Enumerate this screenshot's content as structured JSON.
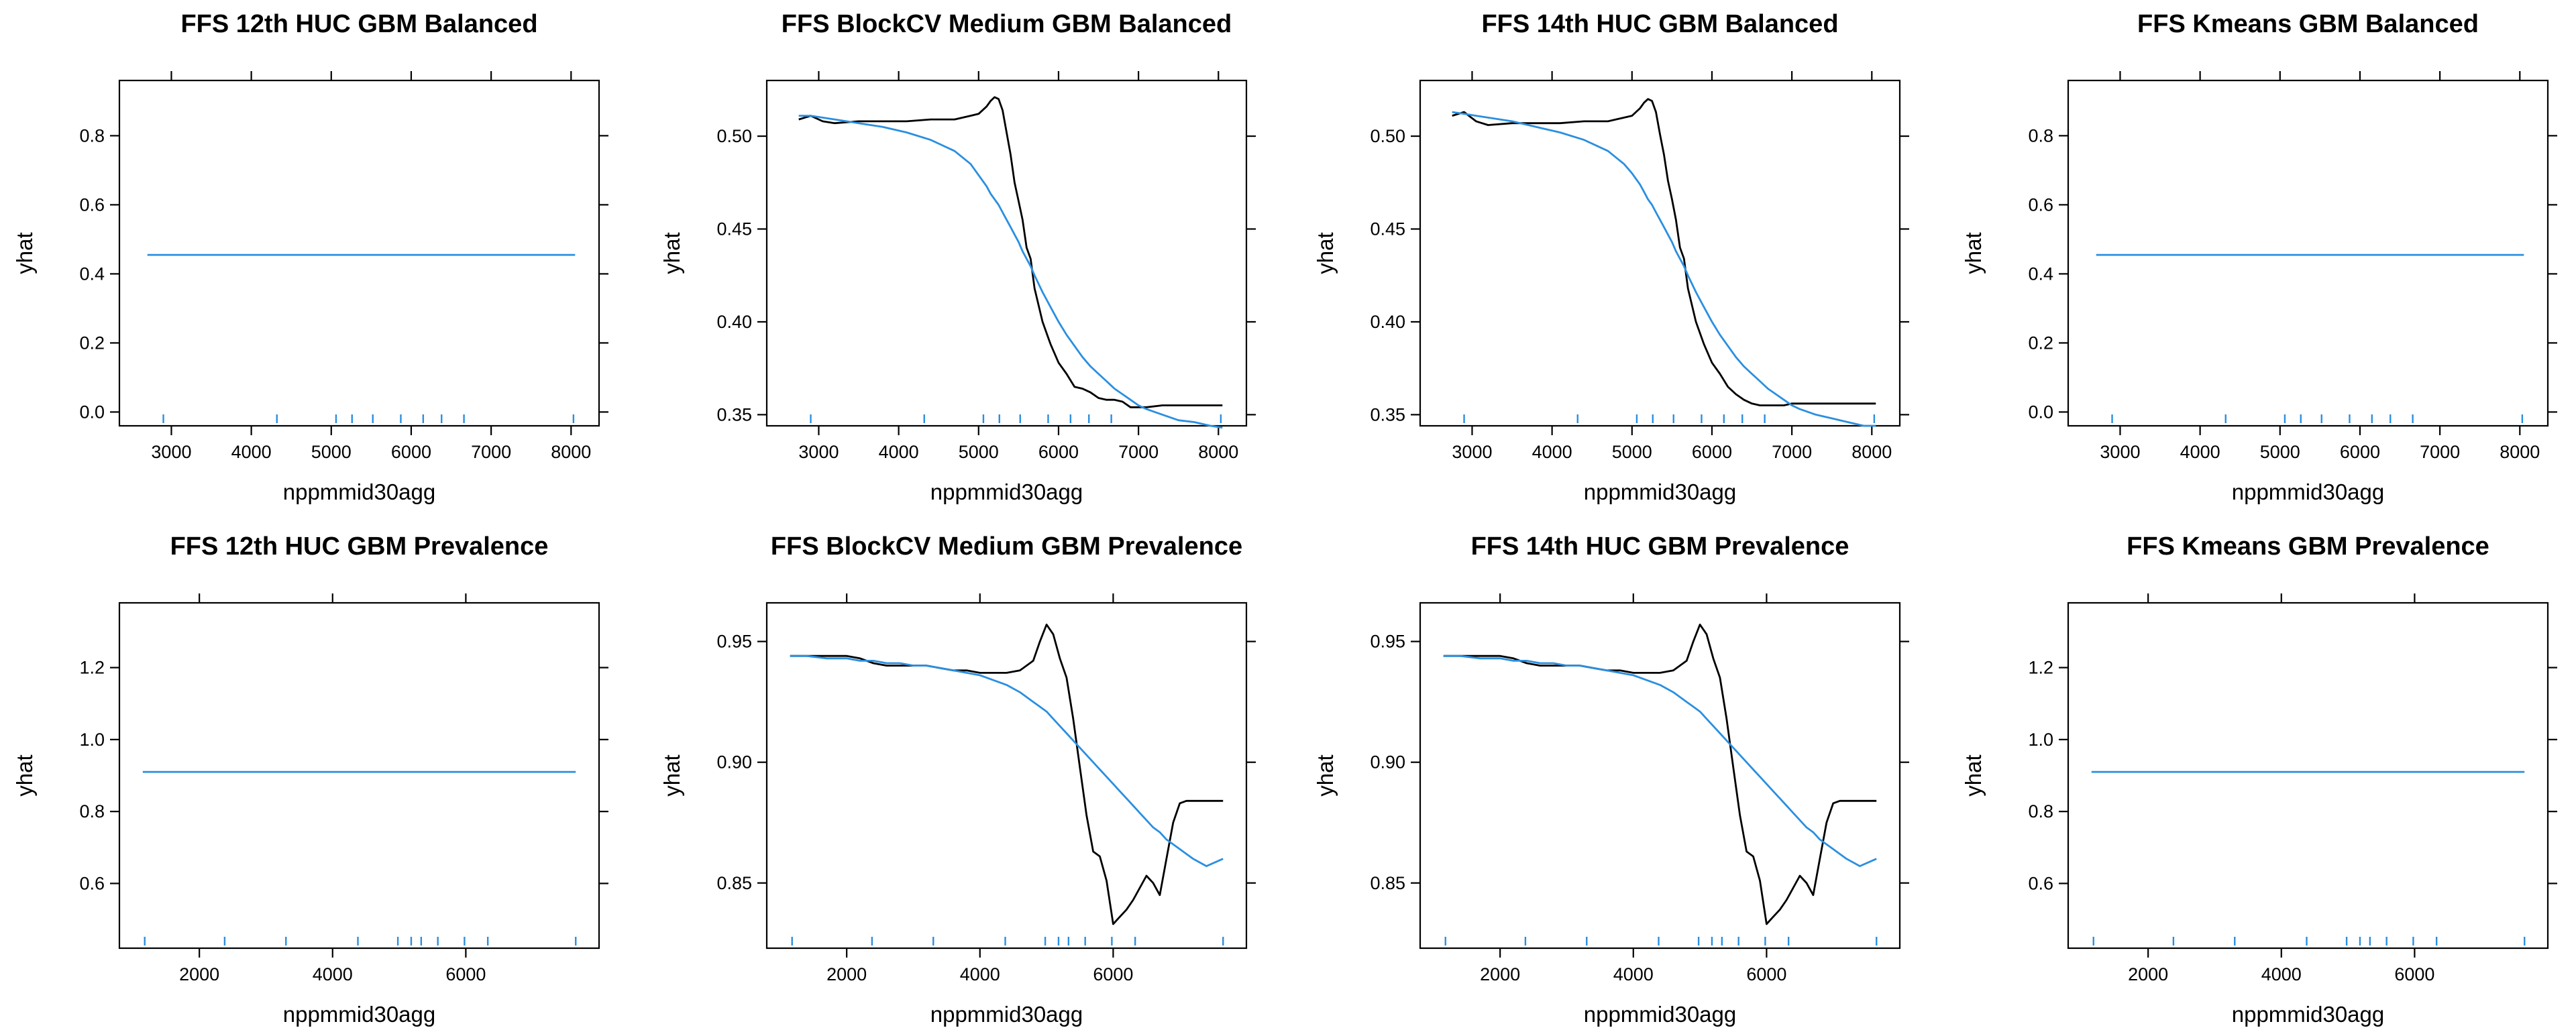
{
  "colors": {
    "yhat_line": "#000000",
    "smooth_line": "#2a8fe0",
    "rug": "#2a8fe0"
  },
  "chart_data": [
    {
      "type": "line",
      "title": "FFS 12th HUC GBM Balanced",
      "xlabel": "nppmmid30agg",
      "ylabel": "yhat",
      "xlim": [
        2350,
        8350
      ],
      "ylim": [
        -0.04,
        0.96
      ],
      "xticks": [
        3000,
        4000,
        5000,
        6000,
        7000,
        8000
      ],
      "yticks": [
        0.0,
        0.2,
        0.4,
        0.6,
        0.8
      ],
      "x": [
        2700,
        8050
      ],
      "series": [
        {
          "values": [
            0.455,
            0.455
          ],
          "color": "#2a8fe0"
        }
      ],
      "rug": [
        2900,
        4320,
        5060,
        5260,
        5520,
        5870,
        6150,
        6380,
        6660,
        8030
      ]
    },
    {
      "type": "line",
      "title": "FFS BlockCV Medium GBM Balanced",
      "xlabel": "nppmmid30agg",
      "ylabel": "yhat",
      "xlim": [
        2350,
        8350
      ],
      "ylim": [
        0.344,
        0.53
      ],
      "xticks": [
        3000,
        4000,
        5000,
        6000,
        7000,
        8000
      ],
      "yticks": [
        0.35,
        0.4,
        0.45,
        0.5
      ],
      "x": [
        2750,
        2900,
        3050,
        3200,
        3500,
        3800,
        4100,
        4400,
        4700,
        4900,
        5000,
        5100,
        5150,
        5200,
        5250,
        5300,
        5350,
        5400,
        5450,
        5500,
        5550,
        5600,
        5650,
        5700,
        5800,
        5900,
        6000,
        6100,
        6200,
        6300,
        6400,
        6500,
        6600,
        6700,
        6800,
        6900,
        7000,
        7100,
        7300,
        7500,
        7700,
        7900,
        8050
      ],
      "series": [
        {
          "values": [
            0.509,
            0.511,
            0.508,
            0.507,
            0.508,
            0.508,
            0.508,
            0.509,
            0.509,
            0.511,
            0.512,
            0.516,
            0.519,
            0.521,
            0.52,
            0.514,
            0.502,
            0.49,
            0.475,
            0.465,
            0.455,
            0.44,
            0.434,
            0.418,
            0.4,
            0.388,
            0.378,
            0.372,
            0.365,
            0.364,
            0.362,
            0.359,
            0.358,
            0.358,
            0.357,
            0.354,
            0.354,
            0.354,
            0.355,
            0.355,
            0.355,
            0.355,
            0.355
          ],
          "color": "#000000"
        },
        {
          "values": [
            0.511,
            0.511,
            0.51,
            0.509,
            0.507,
            0.505,
            0.502,
            0.498,
            0.492,
            0.485,
            0.479,
            0.473,
            0.469,
            0.466,
            0.463,
            0.459,
            0.455,
            0.451,
            0.447,
            0.443,
            0.438,
            0.434,
            0.43,
            0.425,
            0.416,
            0.408,
            0.4,
            0.393,
            0.387,
            0.381,
            0.376,
            0.372,
            0.368,
            0.364,
            0.361,
            0.358,
            0.355,
            0.353,
            0.35,
            0.347,
            0.346,
            0.344,
            0.343
          ],
          "color": "#2a8fe0"
        }
      ],
      "rug": [
        2900,
        4320,
        5060,
        5260,
        5520,
        5870,
        6150,
        6380,
        6660,
        8030
      ]
    },
    {
      "type": "line",
      "title": "FFS 14th HUC GBM Balanced",
      "xlabel": "nppmmid30agg",
      "ylabel": "yhat",
      "xlim": [
        2350,
        8350
      ],
      "ylim": [
        0.344,
        0.53
      ],
      "xticks": [
        3000,
        4000,
        5000,
        6000,
        7000,
        8000
      ],
      "yticks": [
        0.35,
        0.4,
        0.45,
        0.5
      ],
      "x": [
        2750,
        2900,
        3050,
        3200,
        3500,
        3800,
        4100,
        4400,
        4700,
        4900,
        5000,
        5100,
        5150,
        5200,
        5250,
        5300,
        5350,
        5400,
        5450,
        5500,
        5550,
        5600,
        5650,
        5700,
        5800,
        5900,
        6000,
        6100,
        6200,
        6300,
        6400,
        6500,
        6600,
        6700,
        6800,
        6900,
        7000,
        7100,
        7300,
        7500,
        7700,
        7900,
        8050
      ],
      "series": [
        {
          "values": [
            0.511,
            0.513,
            0.508,
            0.506,
            0.507,
            0.507,
            0.507,
            0.508,
            0.508,
            0.51,
            0.511,
            0.515,
            0.518,
            0.52,
            0.519,
            0.513,
            0.501,
            0.49,
            0.476,
            0.466,
            0.455,
            0.44,
            0.434,
            0.418,
            0.4,
            0.388,
            0.378,
            0.372,
            0.365,
            0.361,
            0.358,
            0.356,
            0.355,
            0.355,
            0.355,
            0.355,
            0.356,
            0.356,
            0.356,
            0.356,
            0.356,
            0.356,
            0.356
          ],
          "color": "#000000"
        },
        {
          "values": [
            0.513,
            0.512,
            0.511,
            0.51,
            0.508,
            0.505,
            0.502,
            0.498,
            0.492,
            0.485,
            0.48,
            0.474,
            0.47,
            0.466,
            0.463,
            0.459,
            0.455,
            0.451,
            0.447,
            0.443,
            0.438,
            0.434,
            0.43,
            0.425,
            0.416,
            0.408,
            0.4,
            0.393,
            0.387,
            0.381,
            0.376,
            0.372,
            0.368,
            0.364,
            0.361,
            0.358,
            0.355,
            0.353,
            0.35,
            0.348,
            0.346,
            0.344,
            0.344
          ],
          "color": "#2a8fe0"
        }
      ],
      "rug": [
        2900,
        4320,
        5060,
        5260,
        5520,
        5870,
        6150,
        6380,
        6660,
        8030
      ]
    },
    {
      "type": "line",
      "title": "FFS Kmeans GBM Balanced",
      "xlabel": "nppmmid30agg",
      "ylabel": "yhat",
      "xlim": [
        2350,
        8350
      ],
      "ylim": [
        -0.04,
        0.96
      ],
      "xticks": [
        3000,
        4000,
        5000,
        6000,
        7000,
        8000
      ],
      "yticks": [
        0.0,
        0.2,
        0.4,
        0.6,
        0.8
      ],
      "x": [
        2700,
        8050
      ],
      "series": [
        {
          "values": [
            0.455,
            0.455
          ],
          "color": "#2a8fe0"
        }
      ],
      "rug": [
        2900,
        4320,
        5060,
        5260,
        5520,
        5870,
        6150,
        6380,
        6660,
        8030
      ]
    },
    {
      "type": "line",
      "title": "FFS 12th HUC GBM Prevalence",
      "xlabel": "nppmmid30agg",
      "ylabel": "yhat",
      "xlim": [
        800,
        8000
      ],
      "ylim": [
        0.42,
        1.38
      ],
      "xticks": [
        2000,
        4000,
        6000
      ],
      "yticks": [
        0.6,
        0.8,
        1.0,
        1.2
      ],
      "x": [
        1150,
        7650
      ],
      "series": [
        {
          "values": [
            0.91,
            0.91
          ],
          "color": "#2a8fe0"
        }
      ],
      "rug": [
        1180,
        2380,
        3300,
        4380,
        4980,
        5180,
        5330,
        5580,
        5980,
        6330,
        7650
      ]
    },
    {
      "type": "line",
      "title": "FFS BlockCV Medium GBM Prevalence",
      "xlabel": "nppmmid30agg",
      "ylabel": "yhat",
      "xlim": [
        800,
        8000
      ],
      "ylim": [
        0.823,
        0.966
      ],
      "xticks": [
        2000,
        4000,
        6000
      ],
      "yticks": [
        0.85,
        0.9,
        0.95
      ],
      "x": [
        1150,
        1400,
        1700,
        2000,
        2200,
        2400,
        2600,
        2800,
        3000,
        3200,
        3400,
        3600,
        3800,
        4000,
        4200,
        4400,
        4600,
        4800,
        4900,
        5000,
        5100,
        5200,
        5300,
        5400,
        5500,
        5600,
        5700,
        5800,
        5900,
        6000,
        6100,
        6200,
        6300,
        6400,
        6500,
        6600,
        6700,
        6800,
        6900,
        7000,
        7100,
        7200,
        7400,
        7650
      ],
      "series": [
        {
          "values": [
            0.944,
            0.944,
            0.944,
            0.944,
            0.943,
            0.941,
            0.94,
            0.94,
            0.94,
            0.94,
            0.939,
            0.938,
            0.938,
            0.937,
            0.937,
            0.937,
            0.938,
            0.942,
            0.95,
            0.957,
            0.953,
            0.943,
            0.935,
            0.918,
            0.898,
            0.878,
            0.863,
            0.861,
            0.851,
            0.833,
            0.836,
            0.839,
            0.843,
            0.848,
            0.853,
            0.85,
            0.845,
            0.86,
            0.875,
            0.883,
            0.884,
            0.884,
            0.884,
            0.884
          ],
          "color": "#000000"
        },
        {
          "values": [
            0.944,
            0.944,
            0.943,
            0.943,
            0.942,
            0.942,
            0.941,
            0.941,
            0.94,
            0.94,
            0.939,
            0.938,
            0.937,
            0.936,
            0.934,
            0.932,
            0.929,
            0.925,
            0.923,
            0.921,
            0.918,
            0.915,
            0.912,
            0.909,
            0.906,
            0.903,
            0.9,
            0.897,
            0.894,
            0.891,
            0.888,
            0.885,
            0.882,
            0.879,
            0.876,
            0.873,
            0.871,
            0.868,
            0.866,
            0.864,
            0.862,
            0.86,
            0.857,
            0.86
          ],
          "color": "#2a8fe0"
        }
      ],
      "rug": [
        1180,
        2380,
        3300,
        4380,
        4980,
        5180,
        5330,
        5580,
        5980,
        6330,
        7650
      ]
    },
    {
      "type": "line",
      "title": "FFS 14th HUC GBM Prevalence",
      "xlabel": "nppmmid30agg",
      "ylabel": "yhat",
      "xlim": [
        800,
        8000
      ],
      "ylim": [
        0.823,
        0.966
      ],
      "xticks": [
        2000,
        4000,
        6000
      ],
      "yticks": [
        0.85,
        0.9,
        0.95
      ],
      "x": [
        1150,
        1400,
        1700,
        2000,
        2200,
        2400,
        2600,
        2800,
        3000,
        3200,
        3400,
        3600,
        3800,
        4000,
        4200,
        4400,
        4600,
        4800,
        4900,
        5000,
        5100,
        5200,
        5300,
        5400,
        5500,
        5600,
        5700,
        5800,
        5900,
        6000,
        6100,
        6200,
        6300,
        6400,
        6500,
        6600,
        6700,
        6800,
        6900,
        7000,
        7100,
        7200,
        7400,
        7650
      ],
      "series": [
        {
          "values": [
            0.944,
            0.944,
            0.944,
            0.944,
            0.943,
            0.941,
            0.94,
            0.94,
            0.94,
            0.94,
            0.939,
            0.938,
            0.938,
            0.937,
            0.937,
            0.937,
            0.938,
            0.942,
            0.95,
            0.957,
            0.953,
            0.943,
            0.935,
            0.918,
            0.898,
            0.878,
            0.863,
            0.861,
            0.851,
            0.833,
            0.836,
            0.839,
            0.843,
            0.848,
            0.853,
            0.85,
            0.845,
            0.86,
            0.875,
            0.883,
            0.884,
            0.884,
            0.884,
            0.884
          ],
          "color": "#000000"
        },
        {
          "values": [
            0.944,
            0.944,
            0.943,
            0.943,
            0.942,
            0.942,
            0.941,
            0.941,
            0.94,
            0.94,
            0.939,
            0.938,
            0.937,
            0.936,
            0.934,
            0.932,
            0.929,
            0.925,
            0.923,
            0.921,
            0.918,
            0.915,
            0.912,
            0.909,
            0.906,
            0.903,
            0.9,
            0.897,
            0.894,
            0.891,
            0.888,
            0.885,
            0.882,
            0.879,
            0.876,
            0.873,
            0.871,
            0.868,
            0.866,
            0.864,
            0.862,
            0.86,
            0.857,
            0.86
          ],
          "color": "#2a8fe0"
        }
      ],
      "rug": [
        1180,
        2380,
        3300,
        4380,
        4980,
        5180,
        5330,
        5580,
        5980,
        6330,
        7650
      ]
    },
    {
      "type": "line",
      "title": "FFS Kmeans GBM Prevalence",
      "xlabel": "nppmmid30agg",
      "ylabel": "yhat",
      "xlim": [
        800,
        8000
      ],
      "ylim": [
        0.42,
        1.38
      ],
      "xticks": [
        2000,
        4000,
        6000
      ],
      "yticks": [
        0.6,
        0.8,
        1.0,
        1.2
      ],
      "x": [
        1150,
        7650
      ],
      "series": [
        {
          "values": [
            0.91,
            0.91
          ],
          "color": "#2a8fe0"
        }
      ],
      "rug": [
        1180,
        2380,
        3300,
        4380,
        4980,
        5180,
        5330,
        5580,
        5980,
        6330,
        7650
      ]
    }
  ]
}
